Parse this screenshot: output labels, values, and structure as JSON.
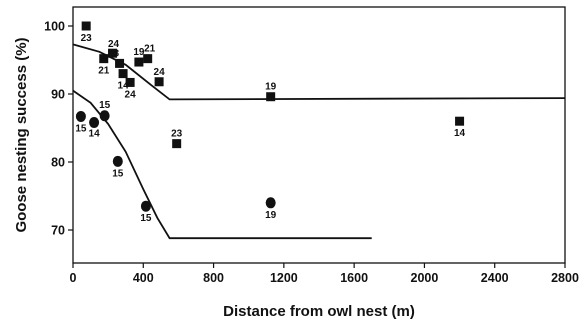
{
  "chart_data": {
    "type": "scatter",
    "xlabel": "Distance from owl nest (m)",
    "ylabel": "Goose nesting success (%)",
    "xlim": [
      0,
      2800
    ],
    "ylim": [
      65,
      102
    ],
    "xticks": [
      0,
      400,
      800,
      1200,
      1600,
      2000,
      2400,
      2800
    ],
    "yticks": [
      70,
      80,
      90,
      100
    ],
    "series": [
      {
        "marker": "square",
        "points": [
          {
            "x": 75,
            "y": 100.0,
            "label": "23"
          },
          {
            "x": 175,
            "y": 95.2,
            "label": "21"
          },
          {
            "x": 225,
            "y": 96.0,
            "label": "24"
          },
          {
            "x": 265,
            "y": 94.5,
            "label": "18"
          },
          {
            "x": 285,
            "y": 93.0,
            "label": "14"
          },
          {
            "x": 325,
            "y": 91.7,
            "label": "24"
          },
          {
            "x": 375,
            "y": 94.7,
            "label": "19"
          },
          {
            "x": 425,
            "y": 95.2,
            "label": "21"
          },
          {
            "x": 490,
            "y": 91.8,
            "label": "24"
          },
          {
            "x": 590,
            "y": 82.7,
            "label": "23"
          },
          {
            "x": 1125,
            "y": 89.6,
            "label": "19"
          },
          {
            "x": 2200,
            "y": 86.0,
            "label": "14"
          }
        ]
      },
      {
        "marker": "circle",
        "points": [
          {
            "x": 45,
            "y": 86.7,
            "label": "15"
          },
          {
            "x": 120,
            "y": 85.8,
            "label": "14"
          },
          {
            "x": 180,
            "y": 86.8,
            "label": "15"
          },
          {
            "x": 255,
            "y": 80.1,
            "label": "15"
          },
          {
            "x": 415,
            "y": 73.5,
            "label": "15"
          },
          {
            "x": 1125,
            "y": 74.0,
            "label": "19"
          }
        ]
      }
    ],
    "fit_lines": [
      {
        "for": "square",
        "points": [
          [
            0,
            97.3
          ],
          [
            150,
            96.2
          ],
          [
            300,
            94.3
          ],
          [
            450,
            91.2
          ],
          [
            550,
            89.2
          ],
          [
            2800,
            89.4
          ]
        ]
      },
      {
        "for": "circle",
        "points": [
          [
            0,
            90.5
          ],
          [
            100,
            88.7
          ],
          [
            200,
            85.6
          ],
          [
            300,
            81.5
          ],
          [
            400,
            76.0
          ],
          [
            480,
            71.8
          ],
          [
            550,
            68.8
          ],
          [
            1700,
            68.8
          ]
        ]
      }
    ]
  }
}
